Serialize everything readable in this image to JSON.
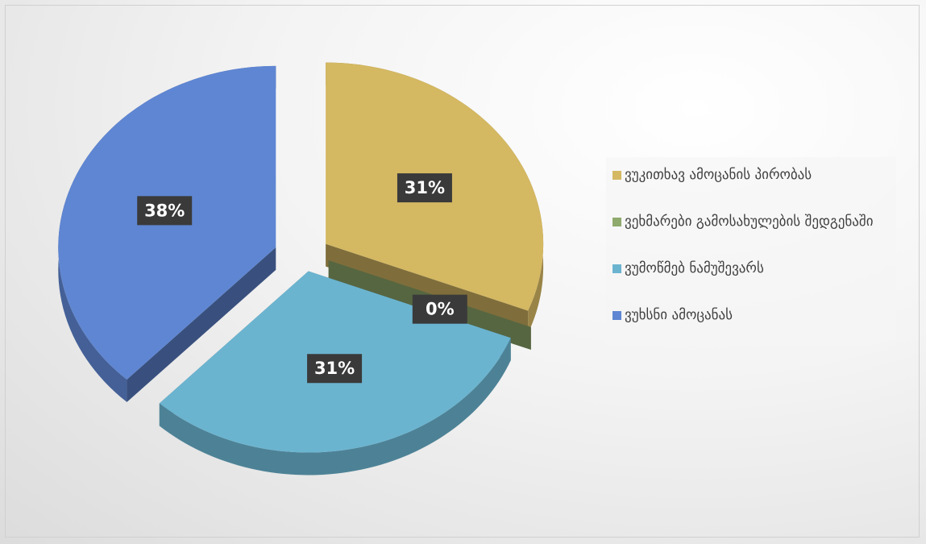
{
  "chart_data": {
    "type": "pie",
    "categories": [
      "ვუკითხავ ამოცანის პირობას",
      "ვეხმარები გამოსახულების შედგენაში",
      "ვუმოწმებ ნამუშევარს",
      "ვუხსნი ამოცანას"
    ],
    "values": [
      31,
      0,
      31,
      38
    ],
    "value_labels": [
      "31%",
      "0%",
      "31%",
      "38%"
    ],
    "colors": [
      "#d4b862",
      "#8faa6c",
      "#6bb4d0",
      "#5f86d2"
    ],
    "legend": "right"
  }
}
